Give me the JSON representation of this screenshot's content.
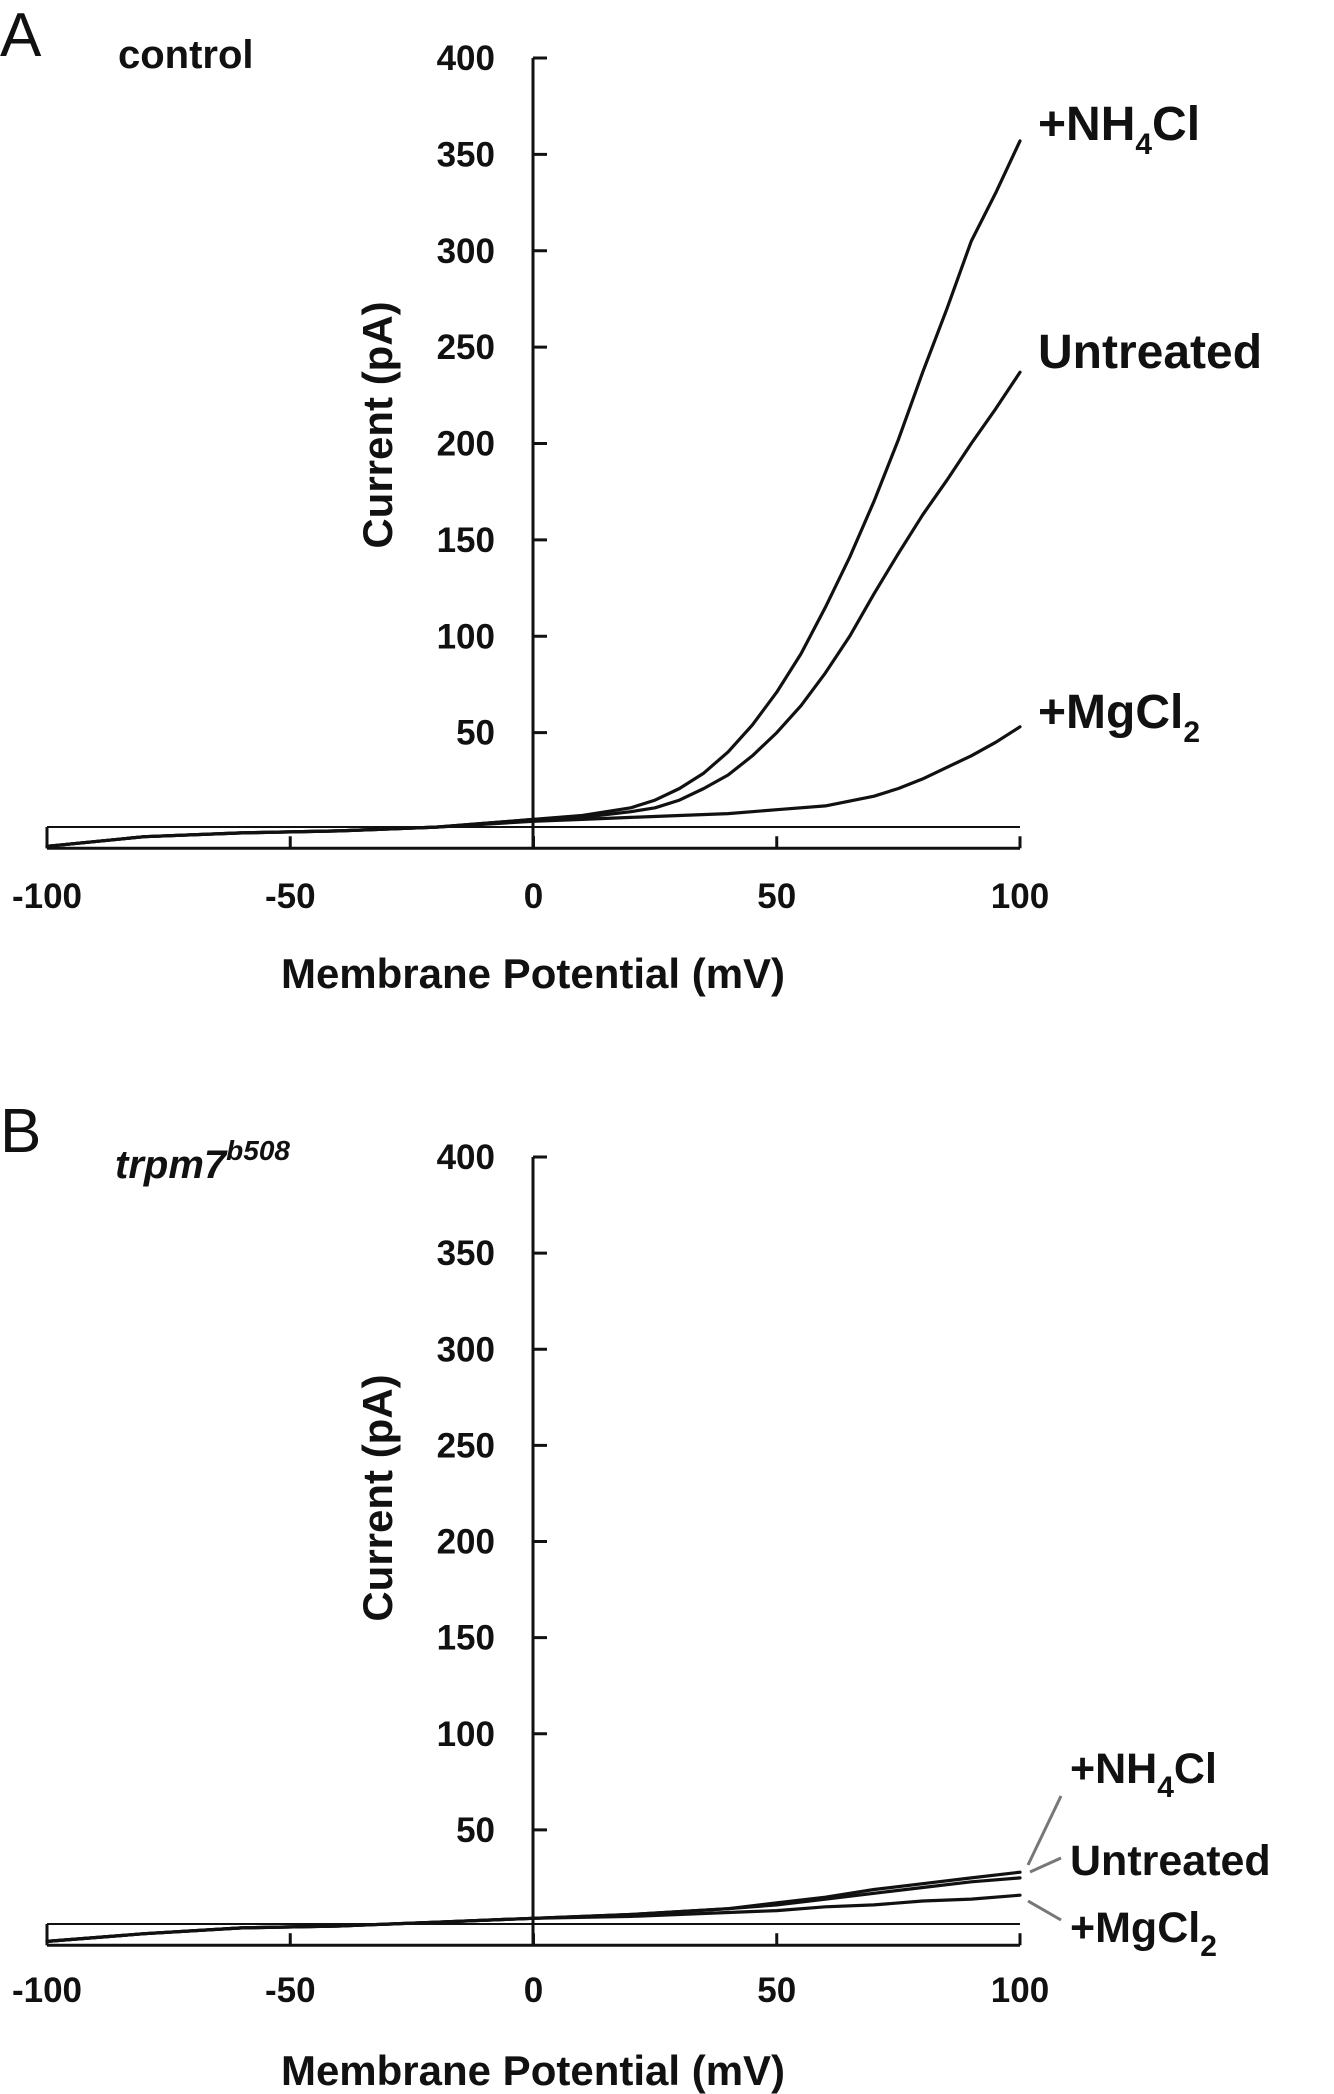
{
  "figure": {
    "panels": [
      {
        "letter": "A",
        "label": "control",
        "label_italic": false,
        "label_superscript": ""
      },
      {
        "letter": "B",
        "label": "trpm7",
        "label_italic": true,
        "label_superscript": "b508"
      }
    ]
  },
  "chart_data": [
    {
      "type": "line",
      "panel": "A",
      "title": "control",
      "xlabel": "Membrane Potential (mV)",
      "ylabel": "Current (pA)",
      "xlim": [
        -100,
        100
      ],
      "ylim": [
        -10,
        400
      ],
      "x_ticks": [
        -100,
        -50,
        0,
        50,
        100
      ],
      "y_ticks": [
        50,
        100,
        150,
        200,
        250,
        300,
        350,
        400
      ],
      "grid": false,
      "legend": "none",
      "series": [
        {
          "name_main": "+NH",
          "name_sub": "4",
          "name_tail": "Cl",
          "name": "+NH4Cl",
          "x": [
            -100,
            -80,
            -60,
            -40,
            -20,
            0,
            10,
            20,
            25,
            30,
            35,
            40,
            45,
            50,
            55,
            60,
            65,
            70,
            75,
            80,
            85,
            90,
            95,
            100
          ],
          "y": [
            -9,
            -4,
            -2,
            -1,
            1,
            5,
            7,
            11,
            15,
            21,
            29,
            40,
            54,
            71,
            91,
            115,
            141,
            170,
            202,
            237,
            270,
            305,
            330,
            357
          ]
        },
        {
          "name_main": "Untreated",
          "name_sub": "",
          "name_tail": "",
          "name": "Untreated",
          "x": [
            -100,
            -80,
            -60,
            -40,
            -20,
            0,
            10,
            20,
            25,
            30,
            35,
            40,
            45,
            50,
            55,
            60,
            65,
            70,
            75,
            80,
            85,
            90,
            95,
            100
          ],
          "y": [
            -9,
            -4,
            -2,
            -1,
            1,
            5,
            6,
            9,
            11,
            15,
            21,
            28,
            38,
            50,
            64,
            81,
            100,
            122,
            143,
            163,
            181,
            200,
            218,
            237
          ]
        },
        {
          "name_main": "+MgCl",
          "name_sub": "2",
          "name_tail": "",
          "name": "+MgCl2",
          "x": [
            -100,
            -80,
            -60,
            -40,
            -20,
            0,
            10,
            20,
            30,
            40,
            50,
            60,
            70,
            75,
            80,
            85,
            90,
            95,
            100
          ],
          "y": [
            -9,
            -4,
            -2,
            -1,
            1,
            4,
            5,
            6,
            7,
            8,
            10,
            12,
            17,
            21,
            26,
            32,
            38,
            45,
            53
          ]
        }
      ]
    },
    {
      "type": "line",
      "panel": "B",
      "title": "trpm7b508",
      "xlabel": "Membrane Potential (mV)",
      "ylabel": "Current (pA)",
      "xlim": [
        -100,
        100
      ],
      "ylim": [
        -10,
        400
      ],
      "x_ticks": [
        -100,
        -50,
        0,
        50,
        100
      ],
      "y_ticks": [
        50,
        100,
        150,
        200,
        250,
        300,
        350,
        400
      ],
      "grid": false,
      "legend": "none",
      "series": [
        {
          "name_main": "+NH",
          "name_sub": "4",
          "name_tail": "Cl",
          "name": "+NH4Cl",
          "x": [
            -100,
            -80,
            -60,
            -40,
            -20,
            0,
            20,
            40,
            50,
            60,
            70,
            80,
            90,
            100
          ],
          "y": [
            -8,
            -4,
            -1,
            0,
            2,
            4,
            6,
            9,
            12,
            15,
            19,
            22,
            25,
            28
          ]
        },
        {
          "name_main": "Untreated",
          "name_sub": "",
          "name_tail": "",
          "name": "Untreated",
          "x": [
            -100,
            -80,
            -60,
            -40,
            -20,
            0,
            20,
            40,
            50,
            60,
            70,
            80,
            90,
            100
          ],
          "y": [
            -8,
            -4,
            -1,
            0,
            2,
            4,
            6,
            9,
            11,
            14,
            17,
            20,
            23,
            25
          ]
        },
        {
          "name_main": "+MgCl",
          "name_sub": "2",
          "name_tail": "",
          "name": "+MgCl2",
          "x": [
            -100,
            -80,
            -60,
            -40,
            -20,
            0,
            20,
            40,
            50,
            60,
            70,
            80,
            90,
            100
          ],
          "y": [
            -8,
            -4,
            -1,
            0,
            2,
            4,
            5,
            7,
            8,
            10,
            11,
            13,
            14,
            16
          ]
        }
      ]
    }
  ]
}
